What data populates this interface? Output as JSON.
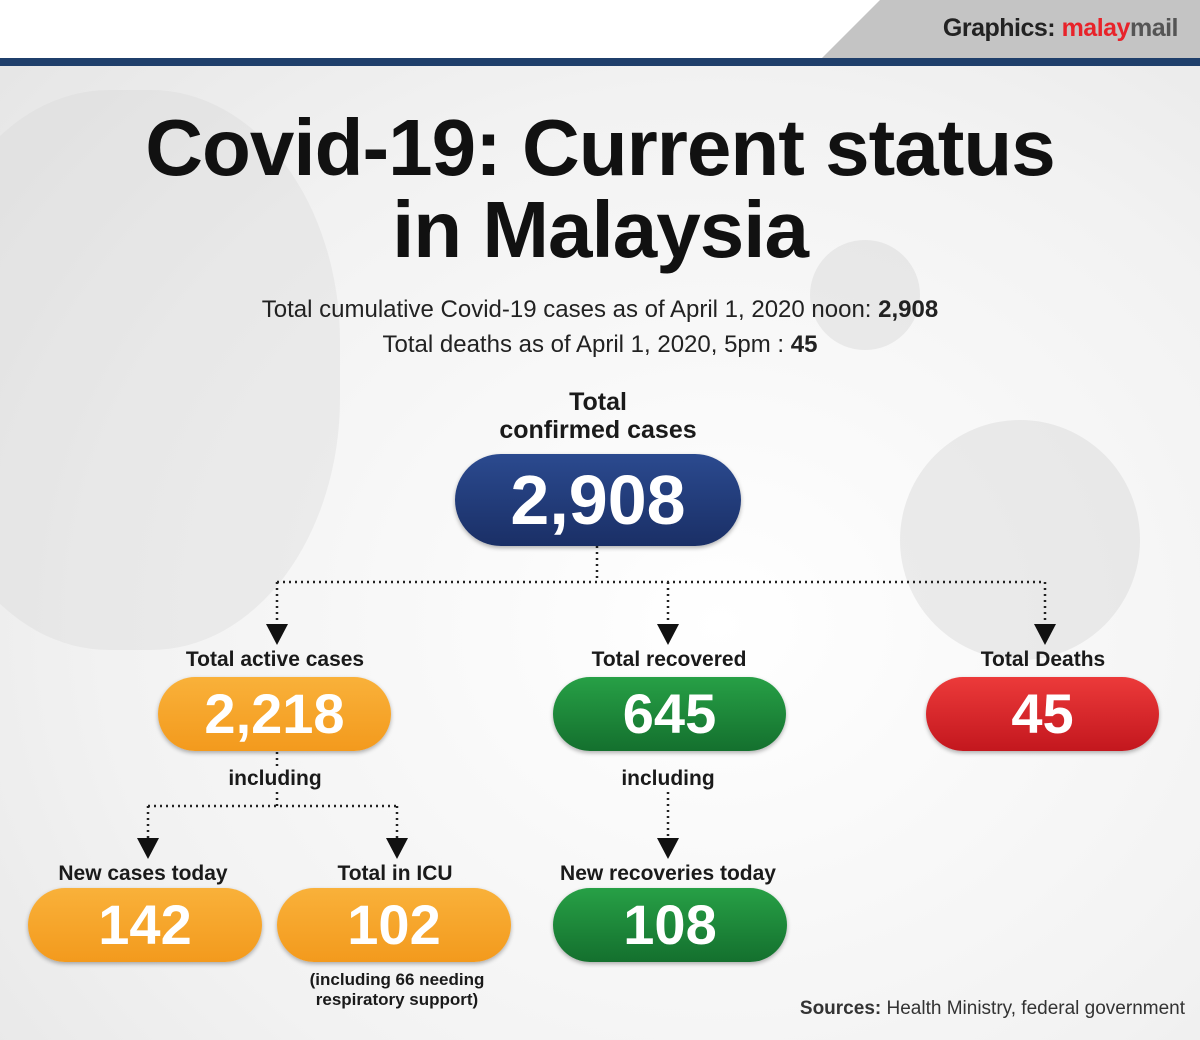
{
  "header": {
    "credit_prefix": "Graphics:",
    "brand_part1": "malay",
    "brand_part2": "mail"
  },
  "title": {
    "line1": "Covid-19: Current status",
    "line2": "in Malaysia"
  },
  "subtitle": {
    "cases_text": "Total cumulative Covid-19 cases as of April 1, 2020 noon: ",
    "cases_value": "2,908",
    "deaths_text": "Total deaths as of  April 1, 2020, 5pm : ",
    "deaths_value": "45"
  },
  "total": {
    "label_line1": "Total",
    "label_line2": "confirmed cases",
    "value": "2,908"
  },
  "active": {
    "label": "Total active cases",
    "value": "2,218",
    "including": "including"
  },
  "recovered": {
    "label": "Total recovered",
    "value": "645",
    "including": "including"
  },
  "deaths": {
    "label": "Total Deaths",
    "value": "45"
  },
  "new_cases": {
    "label": "New cases today",
    "value": "142"
  },
  "icu": {
    "label": "Total in ICU",
    "value": "102",
    "note_line1": "(including 66 needing",
    "note_line2": "respiratory support)"
  },
  "new_recoveries": {
    "label": "New recoveries today",
    "value": "108"
  },
  "sources": {
    "label": "Sources:",
    "text": " Health Ministry, federal government"
  },
  "colors": {
    "navy": "#1f3a78",
    "orange": "#f5a623",
    "green": "#1e8c3a",
    "red": "#d9232a",
    "header_line": "#1f3f6b"
  }
}
